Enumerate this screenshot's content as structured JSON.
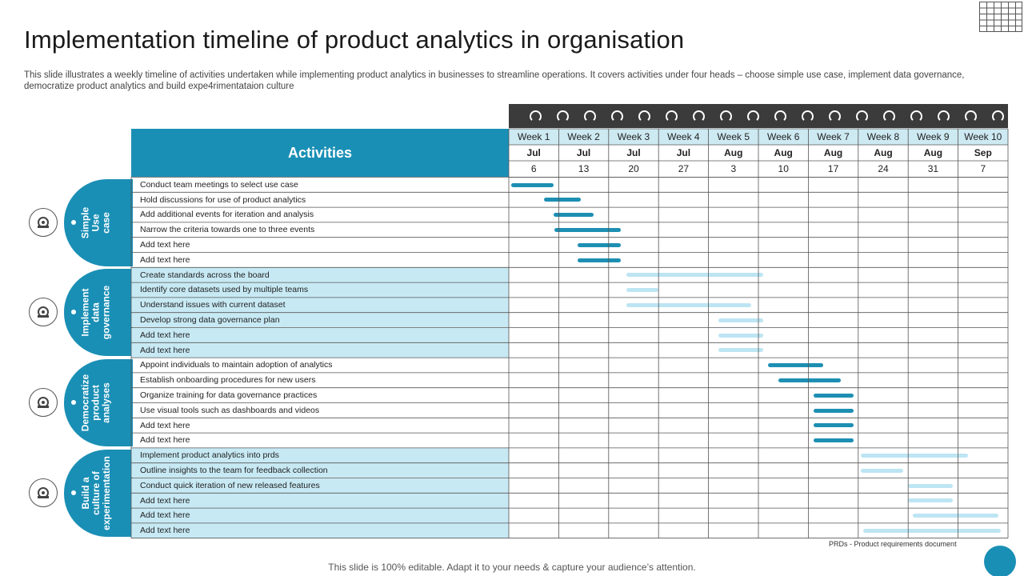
{
  "slide": {
    "title": "Implementation timeline of product analytics in organisation",
    "subtitle": "This slide illustrates a weekly timeline of activities undertaken while implementing product analytics in businesses to streamline operations. It covers activities under four heads – choose simple use case, implement data governance, democratize product analytics and build expe4rimentataion culture",
    "activities_header": "Activities",
    "footnote": "PRDs - Product requirements document",
    "footer": "This slide is 100% editable. Adapt it to your needs & capture your audience’s attention."
  },
  "weeks": [
    {
      "label": "Week 1",
      "month": "Jul",
      "day": "6"
    },
    {
      "label": "Week 2",
      "month": "Jul",
      "day": "13"
    },
    {
      "label": "Week 3",
      "month": "Jul",
      "day": "20"
    },
    {
      "label": "Week 4",
      "month": "Jul",
      "day": "27"
    },
    {
      "label": "Week 5",
      "month": "Aug",
      "day": "3"
    },
    {
      "label": "Week 6",
      "month": "Aug",
      "day": "10"
    },
    {
      "label": "Week 7",
      "month": "Aug",
      "day": "17"
    },
    {
      "label": "Week 8",
      "month": "Aug",
      "day": "24"
    },
    {
      "label": "Week 9",
      "month": "Aug",
      "day": "31"
    },
    {
      "label": "Week 10",
      "month": "Sep",
      "day": "7"
    }
  ],
  "groups": [
    {
      "name": "Simple\nUse\ncase",
      "icon": "target-icon",
      "shaded": false,
      "bar_color": "#1d8fb3",
      "tasks": [
        {
          "text": "Conduct team meetings to select use case",
          "start": 0.05,
          "end": 0.9
        },
        {
          "text": "Hold discussions for use of product analytics",
          "start": 0.7,
          "end": 1.45
        },
        {
          "text": "Add additional events for iteration and analysis",
          "start": 0.9,
          "end": 1.7
        },
        {
          "text": "Narrow the criteria towards one to three events",
          "start": 0.92,
          "end": 2.25
        },
        {
          "text": "Add text here",
          "start": 1.38,
          "end": 2.25
        },
        {
          "text": "Add text here",
          "start": 1.38,
          "end": 2.25
        }
      ]
    },
    {
      "name": "Implement\ndata\ngovernance",
      "icon": "dataset-settings-icon",
      "shaded": true,
      "bar_color": "#bde5f3",
      "tasks": [
        {
          "text": "Create standards across the board",
          "start": 2.35,
          "end": 5.1
        },
        {
          "text": "Identify core datasets used by multiple  teams",
          "start": 2.35,
          "end": 3.0
        },
        {
          "text": "Understand issues with current dataset",
          "start": 2.35,
          "end": 4.85
        },
        {
          "text": "Develop strong data governance plan",
          "start": 4.2,
          "end": 5.1
        },
        {
          "text": "Add text here",
          "start": 4.2,
          "end": 5.1
        },
        {
          "text": "Add text here",
          "start": 4.2,
          "end": 5.1
        }
      ]
    },
    {
      "name": "Democratize\nproduct\nanalyses",
      "icon": "analytics-person-icon",
      "shaded": false,
      "bar_color": "#1d8fb3",
      "tasks": [
        {
          "text": "Appoint individuals to maintain  adoption of analytics",
          "start": 5.2,
          "end": 6.3
        },
        {
          "text": "Establish onboarding procedures for new users",
          "start": 5.4,
          "end": 6.65
        },
        {
          "text": "Organize training  for data governance practices",
          "start": 6.1,
          "end": 6.9
        },
        {
          "text": "Use visual tools such as dashboards and videos",
          "start": 6.1,
          "end": 6.9
        },
        {
          "text": "Add text here",
          "start": 6.1,
          "end": 6.9
        },
        {
          "text": "Add text here",
          "start": 6.1,
          "end": 6.9
        }
      ]
    },
    {
      "name": "Build a\nculture of\nexperimentation",
      "icon": "presentation-board-icon",
      "shaded": true,
      "bar_color": "#bde5f3",
      "tasks": [
        {
          "text": "Implement  product analytics into prds",
          "start": 7.05,
          "end": 9.2
        },
        {
          "text": "Outline insights to the team for feedback collection",
          "start": 7.05,
          "end": 7.9
        },
        {
          "text": "Conduct quick iteration of new released features",
          "start": 8.0,
          "end": 8.9
        },
        {
          "text": "Add text here",
          "start": 8.0,
          "end": 8.9
        },
        {
          "text": "Add text here",
          "start": 8.1,
          "end": 9.8
        },
        {
          "text": "Add text here",
          "start": 7.1,
          "end": 9.85
        }
      ]
    }
  ]
}
